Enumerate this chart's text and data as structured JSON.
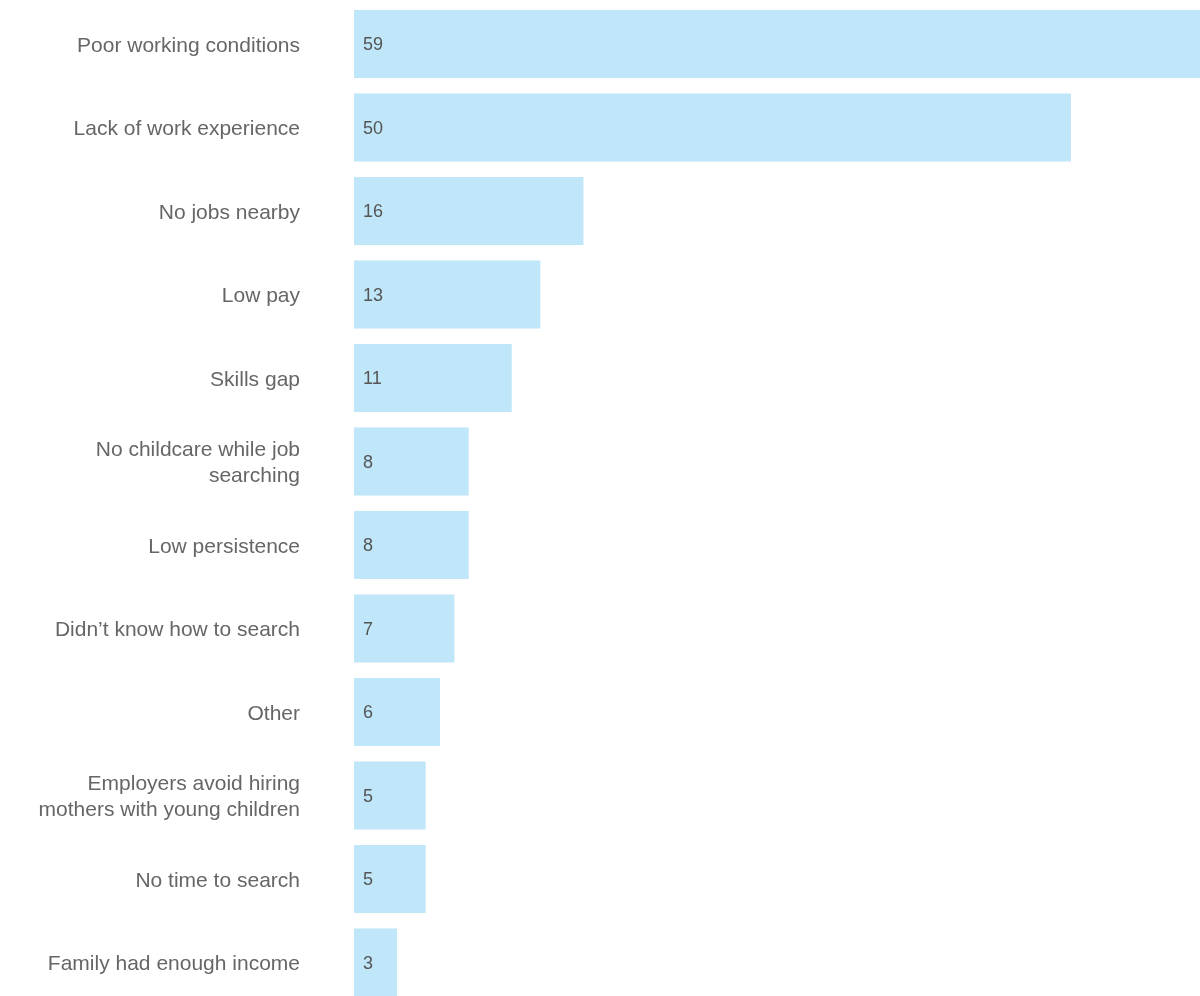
{
  "chart_data": {
    "type": "bar",
    "orientation": "horizontal",
    "categories": [
      "Poor working conditions",
      "Lack of work experience",
      "No jobs nearby",
      "Low pay",
      "Skills gap",
      "No childcare while job searching",
      "Low persistence",
      "Didn’t know how to search",
      "Other",
      "Employers avoid hiring mothers with young children",
      "No time to search",
      "Family had enough income"
    ],
    "values": [
      59,
      50,
      16,
      13,
      11,
      8,
      8,
      7,
      6,
      5,
      5,
      3
    ],
    "color": "#bfe6f9",
    "data_labels": true
  }
}
